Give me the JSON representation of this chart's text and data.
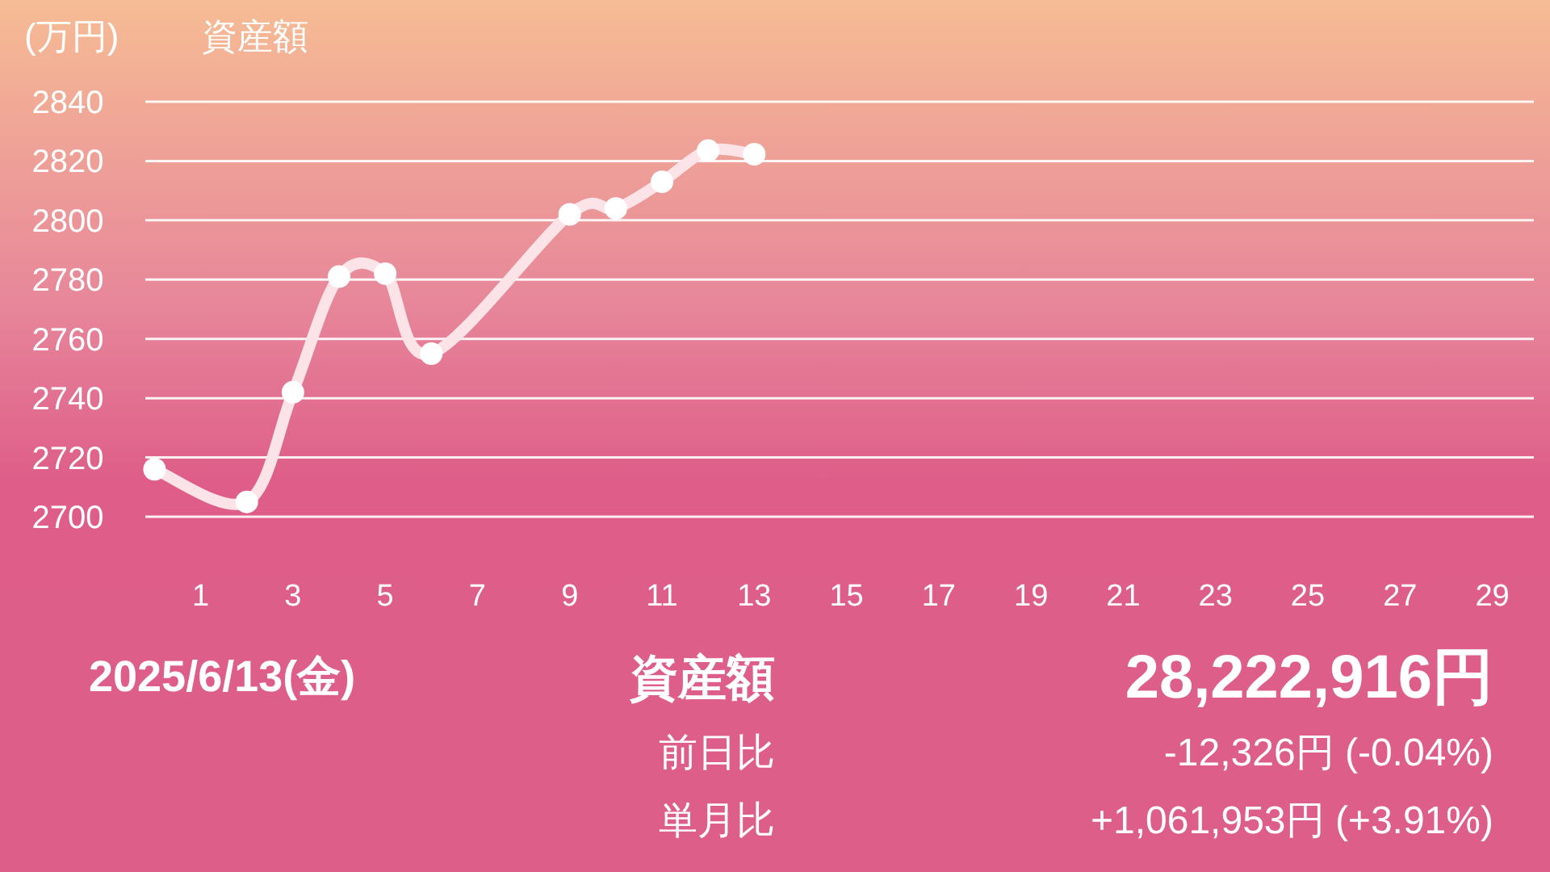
{
  "chart_data": {
    "type": "line",
    "title": "資産額",
    "ylabel": "(万円)",
    "x": [
      0,
      2,
      3,
      4,
      5,
      6,
      9,
      10,
      11,
      12,
      13
    ],
    "series": [
      {
        "color": "#fbe3e8",
        "values": [
          2716,
          2705,
          2742,
          2781,
          2782,
          2755,
          2802,
          2804,
          2813,
          2823.5,
          2822.3
        ]
      }
    ],
    "xlim": [
      -0.2,
      29.9
    ],
    "xticks": [
      1,
      3,
      5,
      7,
      9,
      11,
      13,
      15,
      17,
      19,
      21,
      23,
      25,
      27,
      29
    ],
    "ylim": [
      2700,
      2840
    ],
    "yticks": [
      2700,
      2720,
      2740,
      2760,
      2780,
      2800,
      2820,
      2840
    ],
    "grid": "y",
    "marker": "circle",
    "line_style": "solid",
    "annotations": [
      "2025/6/13(金)",
      "資産額",
      "28,222,916円",
      "前日比",
      "-12,326円 (-0.04%)",
      "単月比",
      "+1,061,953円 (+3.91%)"
    ]
  }
}
